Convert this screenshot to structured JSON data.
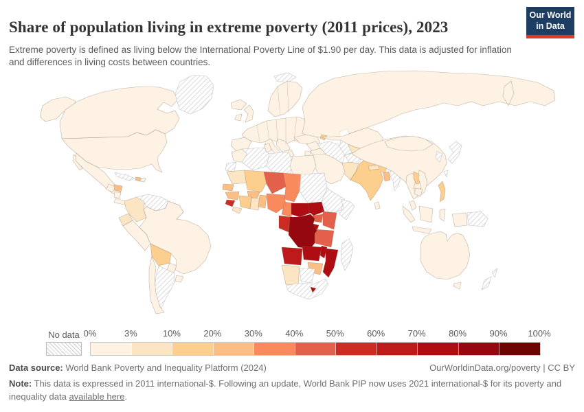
{
  "header": {
    "title": "Share of population living in extreme poverty (2011 prices), 2023",
    "subtitle": "Extreme poverty is defined as living below the International Poverty Line of $1.90 per day. This data is adjusted for inflation and differences in living costs between countries.",
    "logo": {
      "line1": "Our World",
      "line2": "in Data",
      "bg": "#1d3d63",
      "bar": "#dc3a2a"
    }
  },
  "legend": {
    "no_data_label": "No data",
    "tick_labels": [
      "0%",
      "3%",
      "10%",
      "20%",
      "30%",
      "40%",
      "50%",
      "60%",
      "70%",
      "80%",
      "90%",
      "100%"
    ]
  },
  "footer": {
    "datasource_label": "Data source:",
    "datasource_text": " World Bank Poverty and Inequality Platform (2024)",
    "attribution": "OurWorldinData.org/poverty | CC BY",
    "note_label": "Note:",
    "note_text": " This data is expressed in 2011 international-$. Following an update, World Bank PIP now uses 2021 international-$ for its poverty and inequality data ",
    "note_link": "available here",
    "note_end": "."
  },
  "chart_data": {
    "type": "heatmap",
    "subtype": "world-choropleth",
    "title": "Share of population living in extreme poverty (2011 prices), 2023",
    "unit": "% of population below $1.90/day",
    "year": "2023",
    "legend_boundaries": [
      "0%",
      "3%",
      "10%",
      "20%",
      "30%",
      "40%",
      "50%",
      "60%",
      "70%",
      "80%",
      "90%",
      "100%"
    ],
    "bin_labels": [
      "0-3%",
      "3-10%",
      "10-20%",
      "20-30%",
      "30-40%",
      "40-50%",
      "50-60%",
      "60-70%",
      "70-80%",
      "80-90%",
      "90-100%"
    ],
    "palette": [
      "#fdf2e3",
      "#fce5c2",
      "#fccf8e",
      "#fbbe85",
      "#f98a5e",
      "#e3604b",
      "#cb2c23",
      "#bd1a1a",
      "#ae0e13",
      "#95080f",
      "#6d0400"
    ],
    "no_data_fill": "hatch",
    "regions": [
      {
        "id": "united-states",
        "name": "United States",
        "bin": 0
      },
      {
        "id": "canada",
        "name": "Canada",
        "bin": 0
      },
      {
        "id": "greenland",
        "name": "Greenland",
        "bin": -1
      },
      {
        "id": "mexico",
        "name": "Mexico",
        "bin": 0
      },
      {
        "id": "guatemala",
        "name": "Guatemala",
        "bin": 0
      },
      {
        "id": "honduras",
        "name": "Honduras",
        "bin": 3
      },
      {
        "id": "nicaragua",
        "name": "Nicaragua",
        "bin": 0
      },
      {
        "id": "costa-panama",
        "name": "Costa Rica / Panama",
        "bin": 0
      },
      {
        "id": "cuba",
        "name": "Cuba",
        "bin": -1
      },
      {
        "id": "haiti",
        "name": "Haiti",
        "bin": 3
      },
      {
        "id": "dominican-republic",
        "name": "Dominican Republic",
        "bin": 0
      },
      {
        "id": "colombia",
        "name": "Colombia",
        "bin": 1
      },
      {
        "id": "venezuela",
        "name": "Venezuela",
        "bin": -1
      },
      {
        "id": "guyanas",
        "name": "Guyana / Suriname",
        "bin": -1
      },
      {
        "id": "ecuador",
        "name": "Ecuador",
        "bin": 1
      },
      {
        "id": "peru",
        "name": "Peru",
        "bin": 0
      },
      {
        "id": "brazil",
        "name": "Brazil",
        "bin": 0
      },
      {
        "id": "bolivia",
        "name": "Bolivia",
        "bin": 2
      },
      {
        "id": "paraguay",
        "name": "Paraguay",
        "bin": 0
      },
      {
        "id": "uruguay",
        "name": "Uruguay",
        "bin": 0
      },
      {
        "id": "argentina",
        "name": "Argentina",
        "bin": -1
      },
      {
        "id": "chile",
        "name": "Chile",
        "bin": 0
      },
      {
        "id": "iceland",
        "name": "Iceland",
        "bin": 0
      },
      {
        "id": "svalbard",
        "name": "Svalbard",
        "bin": -1
      },
      {
        "id": "ireland",
        "name": "Ireland",
        "bin": 0
      },
      {
        "id": "united-kingdom",
        "name": "United Kingdom",
        "bin": 0
      },
      {
        "id": "scandinavia",
        "name": "Norway / Sweden / Finland",
        "bin": 0
      },
      {
        "id": "europe-mainland",
        "name": "Europe",
        "bin": 0
      },
      {
        "id": "iberia",
        "name": "Spain / Portugal",
        "bin": 0
      },
      {
        "id": "italy",
        "name": "Italy",
        "bin": 0
      },
      {
        "id": "balkans",
        "name": "Balkans",
        "bin": 0
      },
      {
        "id": "greece",
        "name": "Greece",
        "bin": 0
      },
      {
        "id": "turkey",
        "name": "Turkey",
        "bin": 0
      },
      {
        "id": "russia",
        "name": "Russia",
        "bin": 0
      },
      {
        "id": "kazakhstan",
        "name": "Kazakhstan",
        "bin": 0
      },
      {
        "id": "uzbekistan",
        "name": "Uzbekistan",
        "bin": 1
      },
      {
        "id": "turkmenistan",
        "name": "Turkmenistan",
        "bin": -1
      },
      {
        "id": "azerbaijan",
        "name": "Azerbaijan",
        "bin": 2
      },
      {
        "id": "iran",
        "name": "Iran",
        "bin": -1
      },
      {
        "id": "afghanistan",
        "name": "Afghanistan",
        "bin": -1
      },
      {
        "id": "pakistan",
        "name": "Pakistan",
        "bin": 1
      },
      {
        "id": "india",
        "name": "India",
        "bin": 2
      },
      {
        "id": "nepal",
        "name": "Nepal",
        "bin": 1
      },
      {
        "id": "bangladesh",
        "name": "Bangladesh",
        "bin": 3
      },
      {
        "id": "sri-lanka",
        "name": "Sri Lanka",
        "bin": 0
      },
      {
        "id": "myanmar",
        "name": "Myanmar",
        "bin": -1
      },
      {
        "id": "china",
        "name": "China",
        "bin": 0
      },
      {
        "id": "mongolia",
        "name": "Mongolia",
        "bin": 0
      },
      {
        "id": "korea",
        "name": "Korea",
        "bin": -1
      },
      {
        "id": "japan",
        "name": "Japan",
        "bin": -1
      },
      {
        "id": "taiwan",
        "name": "Taiwan",
        "bin": -1
      },
      {
        "id": "thailand",
        "name": "Thailand",
        "bin": 0
      },
      {
        "id": "laos",
        "name": "Laos",
        "bin": 2
      },
      {
        "id": "vietnam",
        "name": "Vietnam",
        "bin": 0
      },
      {
        "id": "cambodia",
        "name": "Cambodia",
        "bin": 0
      },
      {
        "id": "malaysia",
        "name": "Malaysia",
        "bin": 0
      },
      {
        "id": "indonesia",
        "name": "Indonesia",
        "bin": 0
      },
      {
        "id": "philippines",
        "name": "Philippines",
        "bin": 2
      },
      {
        "id": "papua-new-guinea",
        "name": "Papua New Guinea",
        "bin": -1
      },
      {
        "id": "australia",
        "name": "Australia",
        "bin": 0
      },
      {
        "id": "new-zealand",
        "name": "New Zealand",
        "bin": -1
      },
      {
        "id": "morocco",
        "name": "Morocco",
        "bin": 0
      },
      {
        "id": "western-sahara",
        "name": "Western Sahara",
        "bin": -1
      },
      {
        "id": "algeria",
        "name": "Algeria",
        "bin": -1
      },
      {
        "id": "tunisia",
        "name": "Tunisia",
        "bin": 0
      },
      {
        "id": "libya",
        "name": "Libya",
        "bin": -1
      },
      {
        "id": "egypt",
        "name": "Egypt",
        "bin": 0
      },
      {
        "id": "mauritania",
        "name": "Mauritania",
        "bin": 1
      },
      {
        "id": "senegal",
        "name": "Senegal",
        "bin": 3
      },
      {
        "id": "mali",
        "name": "Mali",
        "bin": 2
      },
      {
        "id": "burkina-faso",
        "name": "Burkina Faso",
        "bin": 3
      },
      {
        "id": "niger",
        "name": "Niger",
        "bin": 5
      },
      {
        "id": "chad",
        "name": "Chad",
        "bin": 4
      },
      {
        "id": "sudan",
        "name": "Sudan",
        "bin": -1
      },
      {
        "id": "ethiopia",
        "name": "Ethiopia / Eritrea",
        "bin": -1
      },
      {
        "id": "somalia",
        "name": "Somalia",
        "bin": -1
      },
      {
        "id": "guinea",
        "name": "Guinea",
        "bin": 3
      },
      {
        "id": "sierra-leone",
        "name": "Sierra Leone",
        "bin": 6
      },
      {
        "id": "liberia",
        "name": "Liberia",
        "bin": 1
      },
      {
        "id": "cote-divoire",
        "name": "Cote d'Ivoire",
        "bin": 2
      },
      {
        "id": "ghana",
        "name": "Ghana",
        "bin": 1
      },
      {
        "id": "togo-benin",
        "name": "Togo / Benin",
        "bin": 3
      },
      {
        "id": "nigeria",
        "name": "Nigeria",
        "bin": 4
      },
      {
        "id": "cameroon",
        "name": "Cameroon",
        "bin": 4
      },
      {
        "id": "central-african-republic",
        "name": "Central African Republic",
        "bin": 8
      },
      {
        "id": "south-sudan",
        "name": "South Sudan",
        "bin": 8
      },
      {
        "id": "uganda",
        "name": "Uganda",
        "bin": 5
      },
      {
        "id": "kenya",
        "name": "Kenya",
        "bin": 5
      },
      {
        "id": "rwanda-burundi",
        "name": "Rwanda / Burundi",
        "bin": 8
      },
      {
        "id": "tanzania",
        "name": "Tanzania",
        "bin": 5
      },
      {
        "id": "gabon-congo",
        "name": "Congo",
        "bin": 6
      },
      {
        "id": "drc",
        "name": "Democratic Republic of Congo",
        "bin": 9
      },
      {
        "id": "angola",
        "name": "Angola",
        "bin": 7
      },
      {
        "id": "zambia",
        "name": "Zambia",
        "bin": 8
      },
      {
        "id": "malawi",
        "name": "Malawi",
        "bin": 8
      },
      {
        "id": "mozambique",
        "name": "Mozambique",
        "bin": 8
      },
      {
        "id": "zimbabwe",
        "name": "Zimbabwe",
        "bin": 3
      },
      {
        "id": "namibia",
        "name": "Namibia",
        "bin": 1
      },
      {
        "id": "botswana",
        "name": "Botswana",
        "bin": -1
      },
      {
        "id": "south-africa",
        "name": "South Africa",
        "bin": -1
      },
      {
        "id": "lesotho",
        "name": "Lesotho",
        "bin": 8
      },
      {
        "id": "madagascar",
        "name": "Madagascar",
        "bin": -1
      }
    ]
  }
}
